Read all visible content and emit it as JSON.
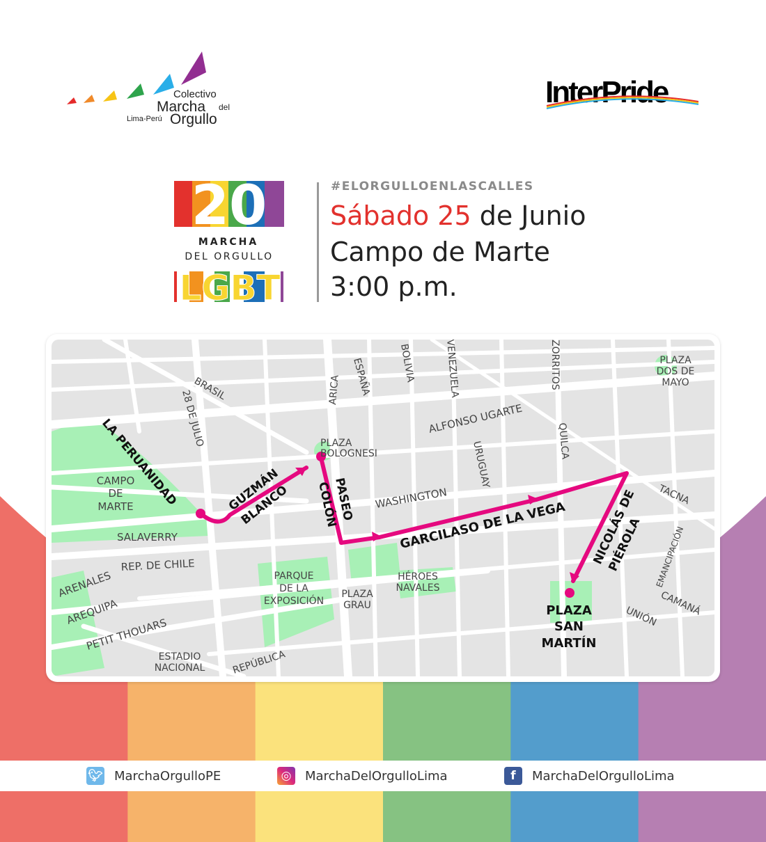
{
  "header": {
    "left_logo": {
      "line1": "Colectivo",
      "line2": "Marcha",
      "line2b": "del",
      "line3a": "Lima-Perú",
      "line3b": "Orgullo"
    },
    "right_logo": "InterPride"
  },
  "badge": {
    "number": "20",
    "line1": "MARCHA",
    "line2": "DEL ORGULLO",
    "letters": "LGBT"
  },
  "event": {
    "hashtag": "#ELORGULLOENLASCALLES",
    "date_highlight": "Sábado 25",
    "date_rest": " de Junio",
    "place": "Campo de Marte",
    "time": "3:00 p.m."
  },
  "map": {
    "route_color": "#e5097f",
    "park_color": "#a8f0b6",
    "labels": {
      "brasil": "BRASIL",
      "28_julio": "28 DE JULIO",
      "arica": "ARICA",
      "espana": "ESPAÑA",
      "bolivia": "BOLIVIA",
      "venezuela": "VENEZUELA",
      "zorritos": "ZORRITOS",
      "plaza_dos_mayo": [
        "PLAZA",
        "DOS DE",
        "MAYO"
      ],
      "alfonso_ugarte": "ALFONSO UGARTE",
      "quilca": "QUILCA",
      "uruguay": "URUGUAY",
      "plaza_bolognesi": [
        "PLAZA",
        "BOLOGNESI"
      ],
      "campo_marte": [
        "CAMPO",
        "DE",
        "MARTE"
      ],
      "washington": "WASHINGTON",
      "tacna": "TACNA",
      "emancipacion": "EMANCIPACIÓN",
      "salaverry": "SALAVERRY",
      "rep_chile": "REP. DE CHILE",
      "arenales": "ARENALES",
      "arequipa": "AREQUIPA",
      "petit_thouars": "PETIT THOUARS",
      "estadio": [
        "ESTADIO",
        "NACIONAL"
      ],
      "republica": "REPÚBLICA",
      "parque_expo": [
        "PARQUE",
        "DE LA",
        "EXPOSICIÓN"
      ],
      "plaza_grau": [
        "PLAZA",
        "GRAU"
      ],
      "heroes": [
        "HÉROES",
        "NAVALES"
      ],
      "camana": "CAMANÁ",
      "union": "UNIÓN"
    },
    "route_labels": {
      "la_peruanidad": "LA PERUANIDAD",
      "guzman": [
        "GUZMÁN",
        "BLANCO"
      ],
      "paseo": [
        "PASEO",
        "COLÓN"
      ],
      "garcilaso": "GARCILASO DE LA VEGA",
      "nicolas": [
        "NICOLÁS DE",
        "PIÉROLA"
      ],
      "plaza_san_martin": [
        "PLAZA",
        "SAN",
        "MARTÍN"
      ]
    }
  },
  "stripe_colors": [
    "#ee6f67",
    "#f6b36a",
    "#fbe27c",
    "#86c282",
    "#539dcc",
    "#b67fb2"
  ],
  "socials": [
    {
      "icon": "twitter-icon",
      "handle": "MarchaOrgulloPE"
    },
    {
      "icon": "instagram-icon",
      "handle": "MarchaDelOrgulloLima"
    },
    {
      "icon": "facebook-icon",
      "handle": "MarchaDelOrgulloLima"
    }
  ]
}
